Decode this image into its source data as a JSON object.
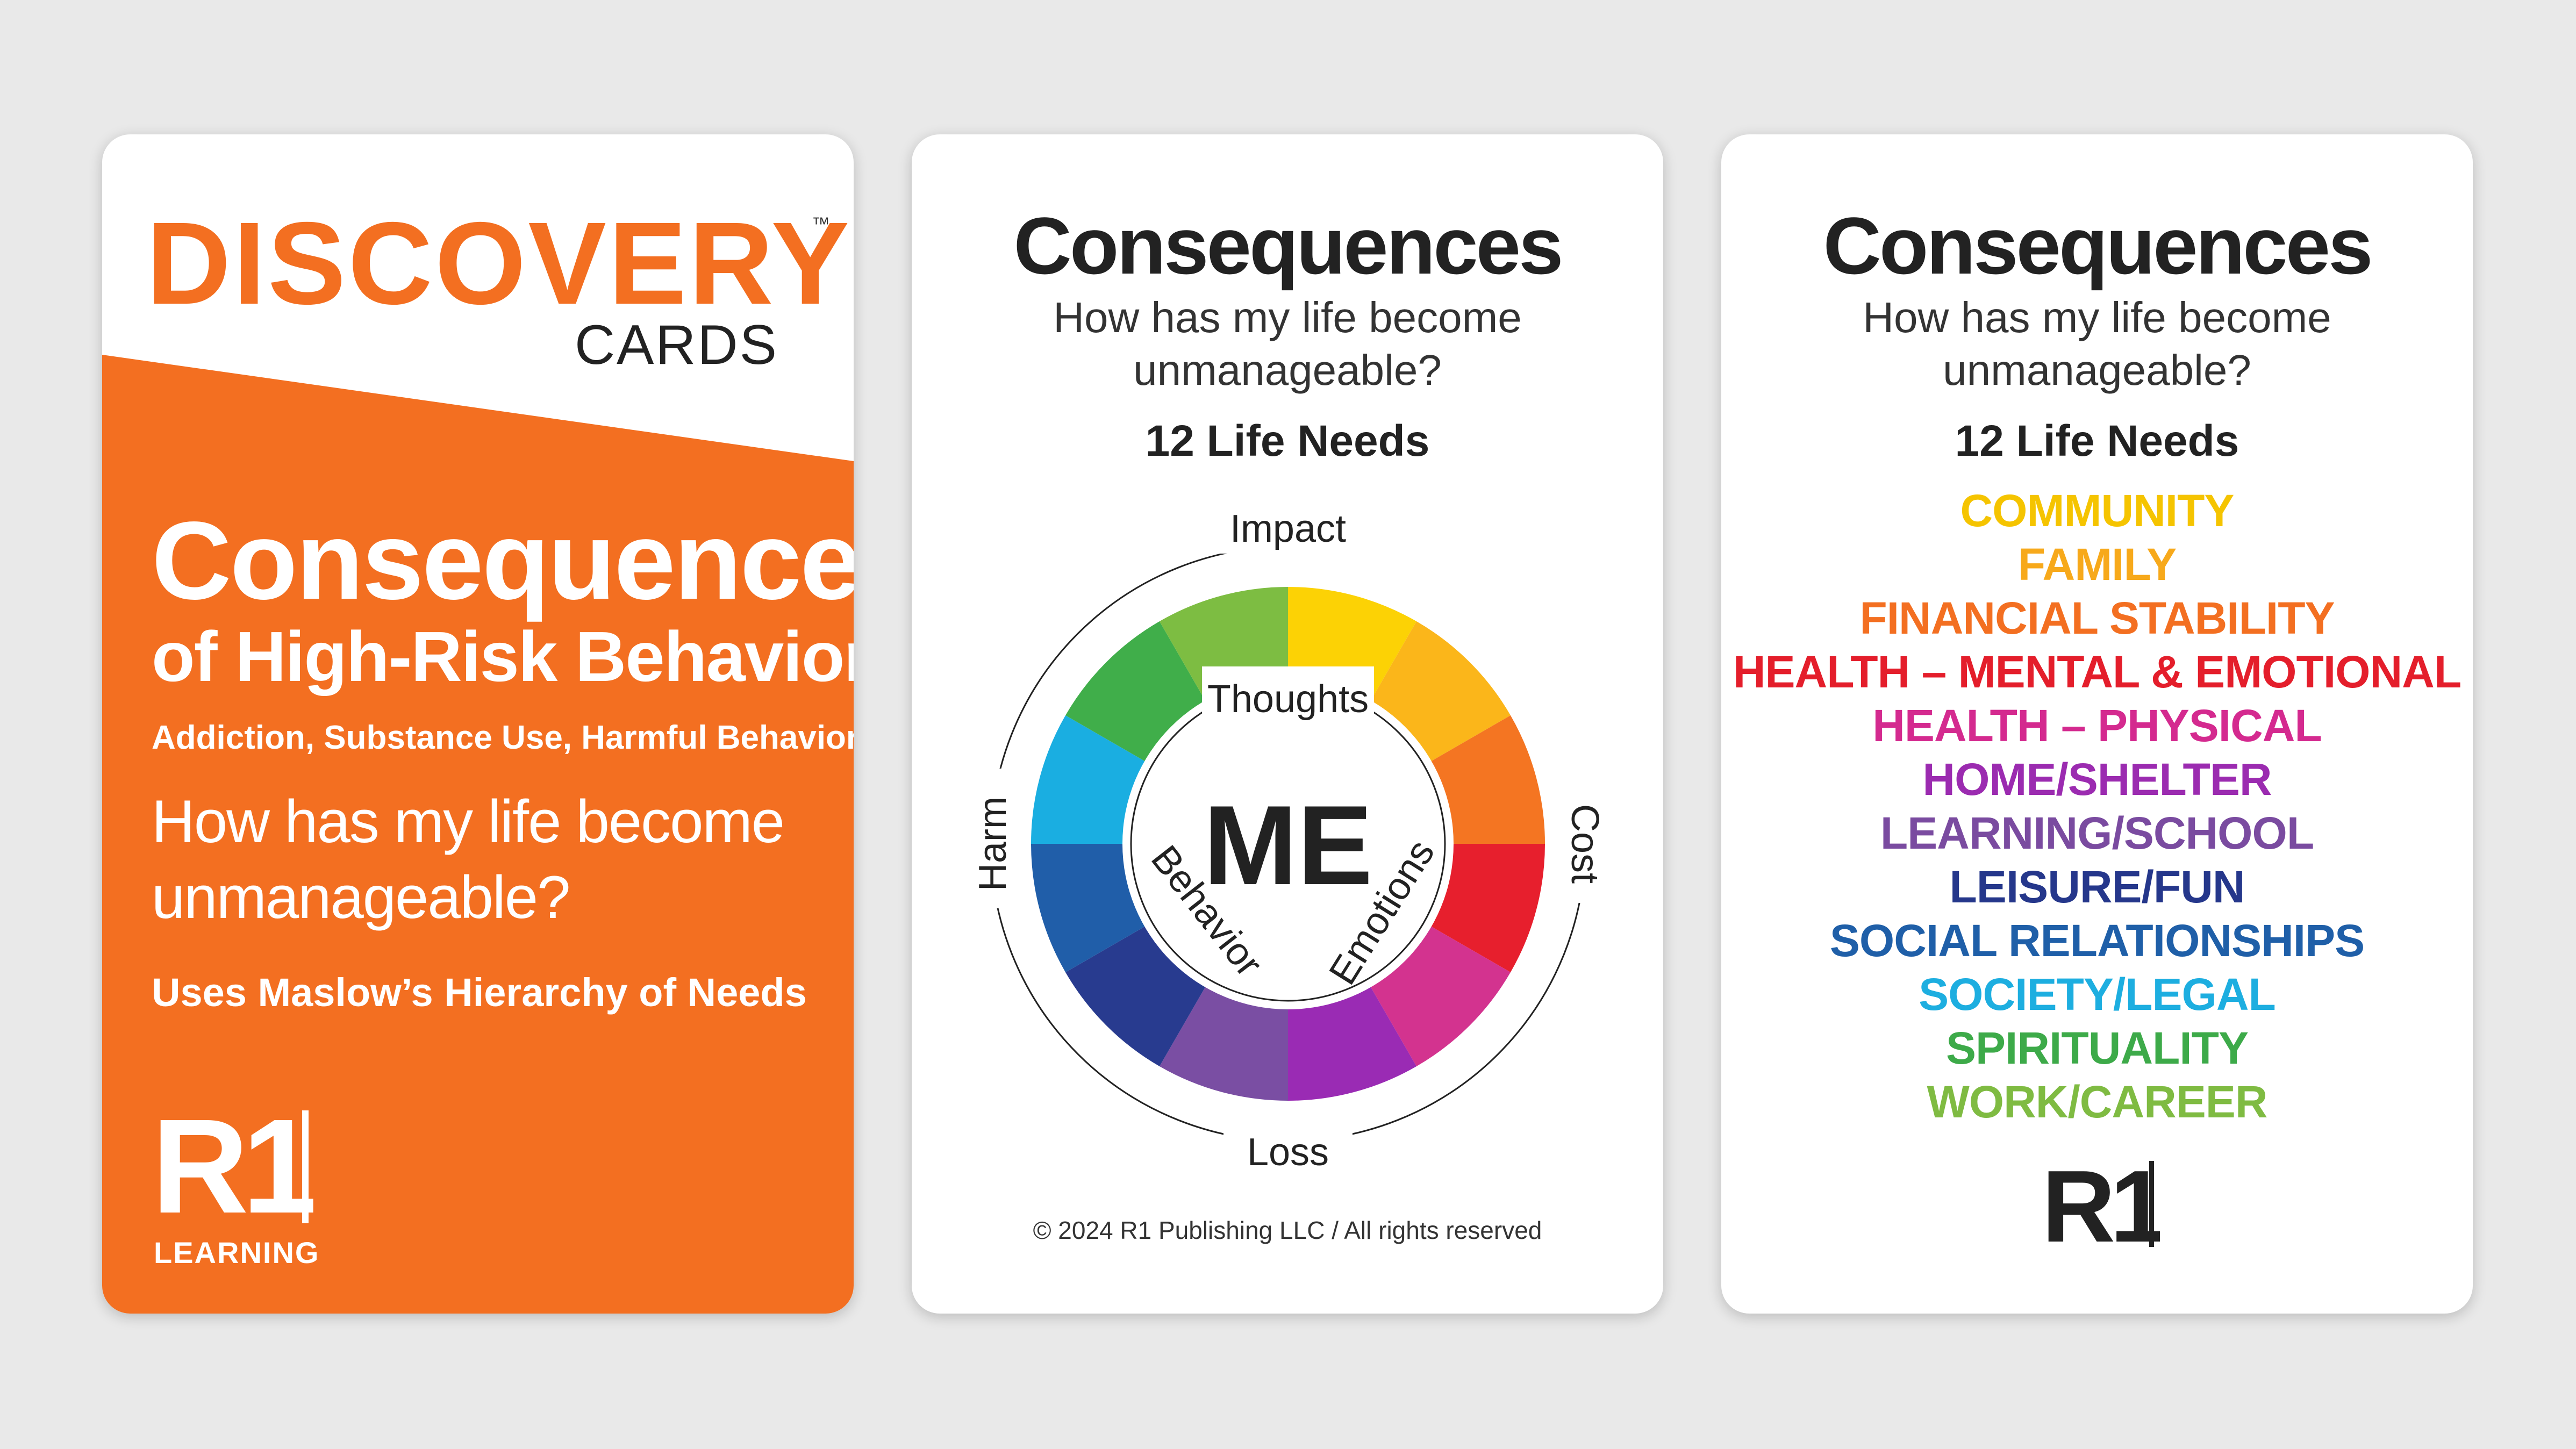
{
  "card1": {
    "brand": "DISCOVERY",
    "trademark": "™",
    "brand_sub": "CARDS",
    "title": "Consequences",
    "subtitle": "of High-Risk Behavior",
    "topics": "Addiction, Substance Use, Harmful Behaviors",
    "question": "How has my life become unmanageable?",
    "maslow": "Uses Maslow’s Hierarchy of Needs",
    "logo_text": "R1",
    "logo_sub": "LEARNING"
  },
  "card2": {
    "title": "Consequences",
    "question": "How has my life become unmanageable?",
    "needs_heading": "12 Life Needs",
    "center": "ME",
    "outer_labels": {
      "top": "Impact",
      "right": "Cost",
      "bottom": "Loss",
      "left": "Harm"
    },
    "inner_labels": {
      "top": "Thoughts",
      "right": "Emotions",
      "left": "Behavior"
    },
    "copyright": "© 2024 R1 Publishing LLC / All rights reserved"
  },
  "card3": {
    "title": "Consequences",
    "question": "How has my life become unmanageable?",
    "needs_heading": "12 Life Needs",
    "needs": [
      {
        "label": "COMMUNITY",
        "color": "#f5c400"
      },
      {
        "label": "FAMILY",
        "color": "#f7a91b"
      },
      {
        "label": "FINANCIAL STABILITY",
        "color": "#f36f21"
      },
      {
        "label": "HEALTH – MENTAL & EMOTIONAL",
        "color": "#e41e2b"
      },
      {
        "label": "HEALTH – PHYSICAL",
        "color": "#d42a8f"
      },
      {
        "label": "HOME/SHELTER",
        "color": "#9b2bb0"
      },
      {
        "label": "LEARNING/SCHOOL",
        "color": "#7a4ba0"
      },
      {
        "label": "LEISURE/FUN",
        "color": "#25378b"
      },
      {
        "label": "SOCIAL RELATIONSHIPS",
        "color": "#1f5fa8"
      },
      {
        "label": "SOCIETY/LEGAL",
        "color": "#1daee0"
      },
      {
        "label": "SPIRITUALITY",
        "color": "#3daa49"
      },
      {
        "label": "WORK/CAREER",
        "color": "#7fbb42"
      }
    ],
    "logo_text": "R1"
  },
  "colors": {
    "orange": "#f36f21",
    "wheel": [
      "#fcd205",
      "#fbb61a",
      "#f47522",
      "#e71f2d",
      "#d3338f",
      "#9a2bb4",
      "#7a4ea3",
      "#283b8f",
      "#205ea9",
      "#1aaee1",
      "#40ae4a",
      "#7dbd42"
    ]
  }
}
